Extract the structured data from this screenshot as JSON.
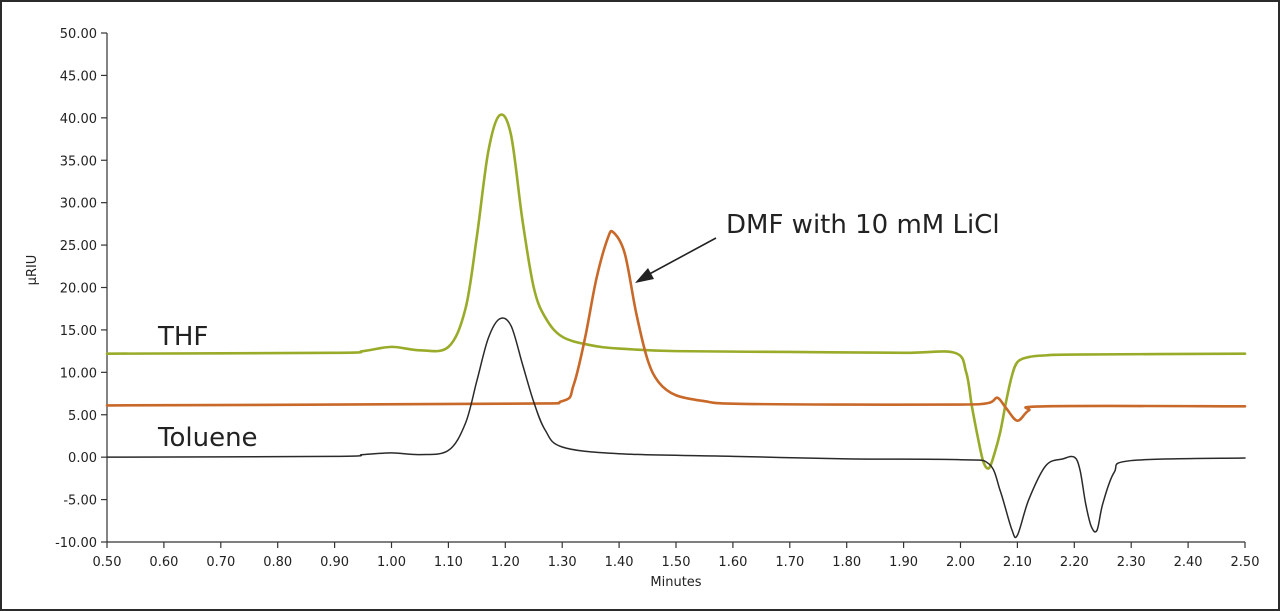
{
  "chart_data": {
    "type": "line",
    "xlabel": "Minutes",
    "ylabel": "µRIU",
    "xlim": [
      0.5,
      2.5
    ],
    "ylim": [
      -10,
      50
    ],
    "x_ticks": [
      "0.50",
      "0.60",
      "0.70",
      "0.80",
      "0.90",
      "1.00",
      "1.10",
      "1.20",
      "1.30",
      "1.40",
      "1.50",
      "1.60",
      "1.70",
      "1.80",
      "1.90",
      "2.00",
      "2.10",
      "2.20",
      "2.30",
      "2.40",
      "2.50"
    ],
    "y_ticks": [
      "50.00",
      "45.00",
      "40.00",
      "35.00",
      "30.00",
      "25.00",
      "20.00",
      "15.00",
      "10.00",
      "5.00",
      "0.00",
      "-5.00",
      "-10.00"
    ],
    "grid": false,
    "colors": {
      "thf": "#9aab2a",
      "dmf": "#c8692a",
      "toluene": "#2a2a2a",
      "axis": "#333333"
    },
    "labels": {
      "thf": "THF",
      "toluene": "Toluene",
      "dmf": "DMF with 10 mM LiCl"
    },
    "series": [
      {
        "name": "THF",
        "x": [
          0.5,
          0.9,
          0.95,
          1.0,
          1.05,
          1.1,
          1.13,
          1.15,
          1.17,
          1.19,
          1.21,
          1.23,
          1.25,
          1.27,
          1.3,
          1.35,
          1.4,
          1.5,
          1.7,
          1.9,
          1.99,
          2.01,
          2.02,
          2.03,
          2.04,
          2.05,
          2.06,
          2.07,
          2.08,
          2.09,
          2.1,
          2.12,
          2.15,
          2.2,
          2.5
        ],
        "y": [
          12.2,
          12.3,
          12.5,
          13.0,
          12.6,
          13.0,
          17.5,
          26.0,
          36.0,
          40.3,
          38.0,
          28.0,
          20.0,
          16.5,
          14.2,
          13.2,
          12.8,
          12.5,
          12.4,
          12.3,
          12.3,
          10.0,
          6.0,
          2.5,
          -0.5,
          -1.3,
          0.5,
          3.0,
          6.5,
          9.5,
          11.2,
          11.8,
          12.0,
          12.1,
          12.2
        ]
      },
      {
        "name": "DMF with 10 mM LiCl",
        "x": [
          0.5,
          1.2,
          1.3,
          1.32,
          1.34,
          1.36,
          1.38,
          1.39,
          1.41,
          1.43,
          1.45,
          1.47,
          1.5,
          1.55,
          1.6,
          1.8,
          2.0,
          2.05,
          2.065,
          2.08,
          2.1,
          2.12,
          2.15,
          2.5
        ],
        "y": [
          6.1,
          6.3,
          6.6,
          8.5,
          14.0,
          21.0,
          25.8,
          26.5,
          24.0,
          17.0,
          11.5,
          8.8,
          7.3,
          6.6,
          6.3,
          6.2,
          6.2,
          6.4,
          7.0,
          5.8,
          4.3,
          5.5,
          6.0,
          6.0
        ]
      },
      {
        "name": "Toluene",
        "x": [
          0.5,
          0.9,
          0.95,
          1.0,
          1.05,
          1.1,
          1.13,
          1.15,
          1.17,
          1.19,
          1.21,
          1.23,
          1.25,
          1.27,
          1.3,
          1.4,
          1.6,
          1.8,
          2.0,
          2.05,
          2.07,
          2.09,
          2.1,
          2.12,
          2.15,
          2.18,
          2.2,
          2.21,
          2.22,
          2.23,
          2.24,
          2.25,
          2.27,
          2.3,
          2.5
        ],
        "y": [
          0.0,
          0.1,
          0.3,
          0.5,
          0.3,
          0.8,
          4.0,
          9.0,
          14.0,
          16.3,
          15.5,
          11.0,
          6.5,
          3.2,
          1.2,
          0.4,
          0.1,
          -0.2,
          -0.3,
          -0.8,
          -4.0,
          -8.5,
          -9.2,
          -5.0,
          -1.0,
          -0.2,
          0.0,
          -1.5,
          -5.5,
          -8.2,
          -8.6,
          -5.5,
          -1.8,
          -0.4,
          -0.1
        ]
      }
    ]
  }
}
